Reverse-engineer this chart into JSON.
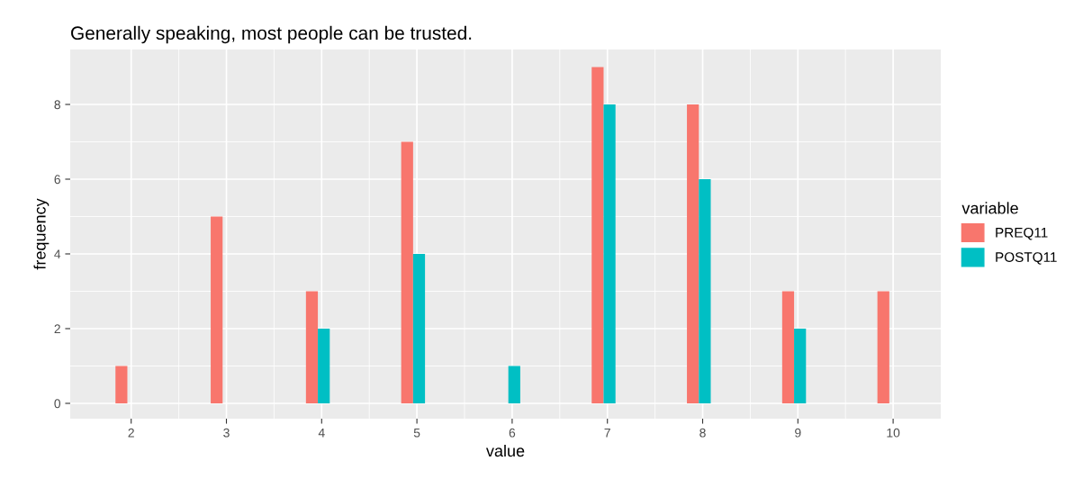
{
  "chart_data": {
    "type": "bar",
    "title": "Generally speaking, most people can be trusted.",
    "xlabel": "value",
    "ylabel": "frequency",
    "legend_title": "variable",
    "x": [
      2,
      3,
      4,
      5,
      6,
      7,
      8,
      9,
      10
    ],
    "series": [
      {
        "name": "PREQ11",
        "color": "#f8766d",
        "values": [
          1,
          5,
          3,
          7,
          null,
          9,
          8,
          3,
          3
        ]
      },
      {
        "name": "POSTQ11",
        "color": "#00bfc4",
        "values": [
          null,
          null,
          2,
          4,
          1,
          8,
          6,
          2,
          null
        ]
      }
    ],
    "xlim": [
      1.36,
      10.5
    ],
    "xticks": [
      2,
      3,
      4,
      5,
      6,
      7,
      8,
      9,
      10
    ],
    "ylim": [
      -0.41,
      9.47
    ],
    "yticks": [
      0,
      2,
      4,
      6,
      8
    ],
    "grid": true,
    "legend": "right"
  }
}
